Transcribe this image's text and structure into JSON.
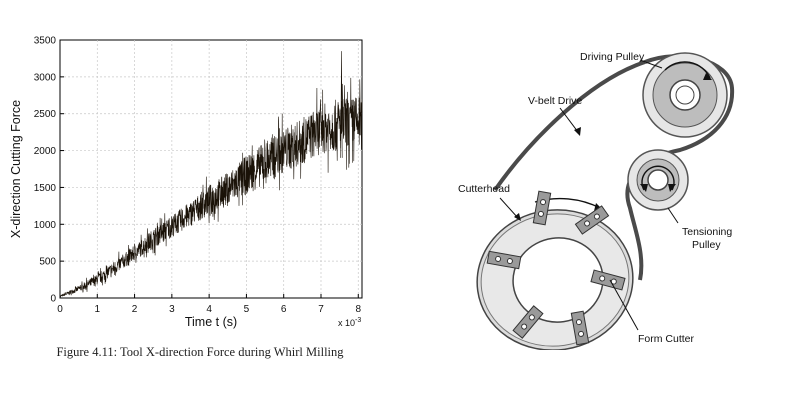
{
  "figure_caption": "Figure 4.11: Tool X-direction Force during Whirl Milling",
  "chart_data": {
    "type": "line",
    "title": "",
    "xlabel": "Time t (s)",
    "xlabel_exponent": "x 10",
    "xlabel_exponent_power": "-3",
    "ylabel": "X-direction Cutting Force",
    "xlim": [
      0,
      8.1
    ],
    "ylim": [
      0,
      3500
    ],
    "xticks": [
      "0",
      "1",
      "2",
      "3",
      "4",
      "5",
      "6",
      "7",
      "8"
    ],
    "yticks": [
      "0",
      "500",
      "1000",
      "1500",
      "2000",
      "2500",
      "3000",
      "3500"
    ],
    "grid": true,
    "series": [
      {
        "color": "#1a1208",
        "envelope": {
          "x": [
            0,
            0.5,
            1,
            1.5,
            2,
            2.5,
            3,
            3.5,
            4,
            4.5,
            5,
            5.5,
            6,
            6.5,
            7,
            7.5,
            8,
            8.1
          ],
          "lower": [
            0,
            50,
            120,
            250,
            420,
            560,
            700,
            830,
            960,
            1060,
            1180,
            1310,
            1450,
            1550,
            1680,
            1700,
            1720,
            1700
          ],
          "upper": [
            40,
            200,
            380,
            600,
            800,
            1050,
            1250,
            1450,
            1700,
            1900,
            2150,
            2350,
            2550,
            2700,
            2900,
            3000,
            3050,
            3000
          ]
        },
        "peak": {
          "x": 7.55,
          "y": 3350
        }
      }
    ]
  },
  "diagram": {
    "labels": {
      "driving_pulley": "Driving Pulley",
      "vbelt_drive": "V-belt Drive",
      "cutterhead": "Cutterhead",
      "tensioning_pulley_line1": "Tensioning",
      "tensioning_pulley_line2": "Pulley",
      "form_cutter": "Form Cutter"
    }
  }
}
